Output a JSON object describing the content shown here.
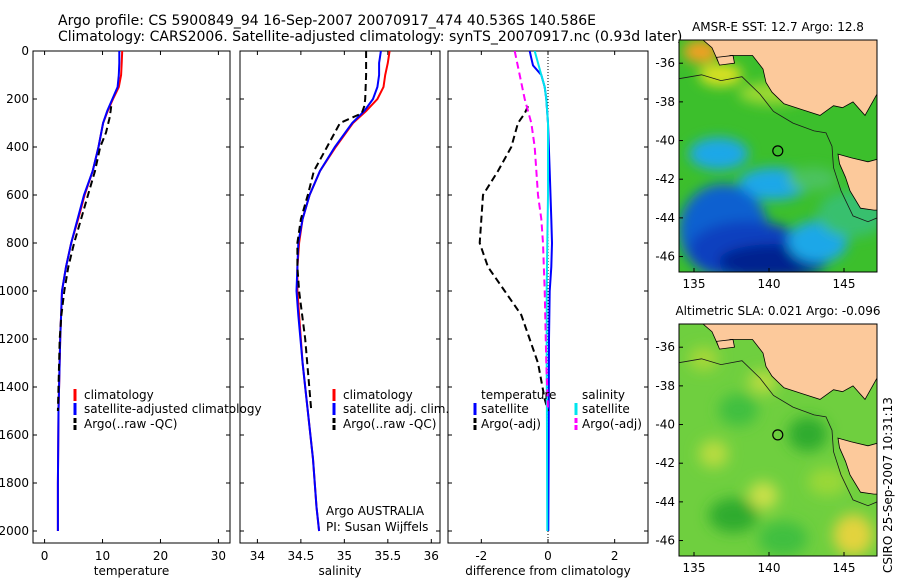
{
  "header": {
    "title_line1": "Argo profile: CS 5900849_94 16-Sep-2007 20070917_474 40.536S 140.586E",
    "title_line2": "Climatology: CARS2006. Satellite-adjusted climatology: synTS_20070917.nc (0.93d later)"
  },
  "side_stamp": "CSIRO 25-Sep-2007 10:31:13",
  "colors": {
    "climatology": "#ff0000",
    "satellite": "#0000ff",
    "argo": "#000000",
    "sal_satellite": "#00e5ee",
    "sal_argo": "#ff00ff",
    "land": "#fcc99b",
    "warm_water": "#3fbf3f",
    "cool_water": "#0a3fbf"
  },
  "chart_data": [
    {
      "type": "line",
      "panel": "temperature",
      "xlabel": "temperature",
      "ylabel": "",
      "xlim": [
        -2,
        32
      ],
      "ylim": [
        2050,
        0
      ],
      "xticks": [
        0,
        10,
        20,
        30
      ],
      "yticks": [
        0,
        200,
        400,
        600,
        800,
        1000,
        1200,
        1400,
        1600,
        1800,
        2000
      ],
      "legend_position": "lower-right",
      "series": [
        {
          "name": "climatology",
          "color": "#ff0000",
          "dash": "solid",
          "x": [
            13.4,
            13.3,
            13.2,
            12.8,
            11.8,
            10.9,
            10.1,
            9.3,
            8.3,
            6.9,
            5.8,
            4.6,
            3.7,
            3.0,
            2.7,
            2.4,
            2.3,
            2.3
          ],
          "y": [
            0,
            50,
            100,
            150,
            200,
            250,
            300,
            400,
            500,
            600,
            700,
            800,
            900,
            1000,
            1200,
            1500,
            1800,
            2000
          ]
        },
        {
          "name": "satellite-adjusted climatology",
          "color": "#0000ff",
          "dash": "solid",
          "x": [
            12.9,
            12.9,
            12.8,
            12.6,
            11.7,
            10.8,
            10.1,
            9.3,
            8.3,
            6.8,
            5.7,
            4.6,
            3.7,
            3.0,
            2.7,
            2.4,
            2.3,
            2.3
          ],
          "y": [
            0,
            50,
            100,
            150,
            200,
            250,
            300,
            400,
            500,
            600,
            700,
            800,
            900,
            1000,
            1200,
            1500,
            1800,
            2000
          ]
        },
        {
          "name": "Argo(..raw -QC)",
          "color": "#000000",
          "dash": "dash",
          "x": [
            11.5,
            11.4,
            11.2,
            10.6,
            9.6,
            8.7,
            7.5,
            6.3,
            5.1,
            4.1,
            3.4,
            2.9,
            2.6,
            2.4,
            2.3
          ],
          "y": [
            230,
            250,
            280,
            340,
            400,
            500,
            600,
            700,
            800,
            900,
            1000,
            1100,
            1200,
            1400,
            1500
          ]
        }
      ],
      "legend": [
        "climatology",
        "satellite-adjusted climatology",
        "Argo(..raw -QC)"
      ]
    },
    {
      "type": "line",
      "panel": "salinity",
      "xlabel": "salinity",
      "xlim": [
        33.8,
        36.1
      ],
      "ylim": [
        2050,
        0
      ],
      "xticks": [
        34,
        34.5,
        35,
        35.5,
        36
      ],
      "xtick_labels": [
        "34",
        "34.5",
        "35",
        "35.5",
        "36"
      ],
      "legend_position": "lower-right",
      "series": [
        {
          "name": "climatology",
          "color": "#ff0000",
          "dash": "solid",
          "x": [
            35.52,
            35.5,
            35.47,
            35.45,
            35.38,
            35.25,
            35.1,
            34.9,
            34.72,
            34.6,
            34.52,
            34.48,
            34.46,
            34.46,
            34.48,
            34.52,
            34.58,
            34.64,
            34.68,
            34.71
          ],
          "y": [
            0,
            50,
            100,
            150,
            200,
            250,
            300,
            400,
            500,
            600,
            700,
            800,
            900,
            1000,
            1100,
            1300,
            1500,
            1700,
            1900,
            2000
          ]
        },
        {
          "name": "satellite adj. clim.",
          "color": "#0000ff",
          "dash": "solid",
          "x": [
            35.42,
            35.4,
            35.4,
            35.38,
            35.33,
            35.23,
            35.09,
            34.89,
            34.72,
            34.6,
            34.52,
            34.47,
            34.46,
            34.45,
            34.47,
            34.52,
            34.58,
            34.64,
            34.68,
            34.71
          ],
          "y": [
            0,
            50,
            100,
            150,
            200,
            250,
            300,
            400,
            500,
            600,
            700,
            800,
            900,
            1000,
            1100,
            1300,
            1500,
            1700,
            1900,
            2000
          ]
        },
        {
          "name": "Argo(..raw -QC)",
          "color": "#000000",
          "dash": "dash",
          "x": [
            35.25,
            35.25,
            35.24,
            35.23,
            35.2,
            34.95,
            34.8,
            34.65,
            34.58,
            34.5,
            34.46,
            34.46,
            34.48,
            34.55,
            34.62
          ],
          "y": [
            0,
            100,
            200,
            230,
            260,
            300,
            400,
            500,
            600,
            700,
            800,
            900,
            1000,
            1200,
            1500
          ]
        }
      ],
      "legend": [
        "climatology",
        "satellite adj. clim.",
        "Argo(..raw -QC)"
      ],
      "annotations": [
        "Argo AUSTRALIA",
        "PI: Susan Wijffels"
      ]
    },
    {
      "type": "line",
      "panel": "difference",
      "xlabel": "difference from climatology",
      "xlim": [
        -3,
        3
      ],
      "ylim": [
        2050,
        0
      ],
      "xticks": [
        -2,
        0,
        2
      ],
      "legend_position": "lower-right",
      "series": [
        {
          "group": "temperature",
          "name": "satellite",
          "color": "#0000ff",
          "dash": "solid",
          "x": [
            -0.55,
            -0.5,
            -0.45,
            -0.2,
            -0.1,
            -0.05,
            0.0,
            0.05,
            0.1,
            0.12,
            0.1,
            0.05,
            0.03,
            0.02,
            0.01
          ],
          "y": [
            0,
            30,
            60,
            100,
            150,
            200,
            300,
            500,
            700,
            800,
            900,
            1000,
            1200,
            1600,
            2000
          ]
        },
        {
          "group": "temperature",
          "name": "Argo(-adj)",
          "color": "#000000",
          "dash": "dash",
          "x": [
            -0.6,
            -0.7,
            -0.9,
            -1.1,
            -1.5,
            -1.95,
            -2.05,
            -1.8,
            -1.3,
            -0.8,
            -0.3,
            -0.1,
            0.0
          ],
          "y": [
            230,
            260,
            300,
            400,
            500,
            600,
            800,
            900,
            1000,
            1100,
            1300,
            1450,
            1500
          ]
        },
        {
          "group": "salinity",
          "name": "satellite",
          "color": "#00e5ee",
          "dash": "solid",
          "x": [
            -0.4,
            -0.3,
            -0.2,
            -0.1,
            -0.05,
            0.0,
            0.0,
            -0.02,
            -0.04,
            -0.04,
            -0.03,
            -0.02
          ],
          "y": [
            0,
            50,
            100,
            150,
            200,
            300,
            600,
            800,
            1000,
            1300,
            1600,
            2000
          ]
        },
        {
          "group": "salinity",
          "name": "Argo(-adj)",
          "color": "#ff00ff",
          "dash": "dash",
          "x": [
            -1.0,
            -0.85,
            -0.7,
            -0.5,
            -0.4,
            -0.3,
            -0.2,
            -0.15,
            -0.1,
            -0.05,
            0.0
          ],
          "y": [
            0,
            100,
            200,
            300,
            400,
            600,
            700,
            800,
            1000,
            1300,
            1500
          ]
        }
      ],
      "legend_groups": {
        "temperature": "temperature",
        "salinity": "salinity"
      },
      "legend": {
        "temperature": [
          "satellite",
          "Argo(-adj)"
        ],
        "salinity": [
          "satellite",
          "Argo(-adj)"
        ]
      }
    },
    {
      "type": "heatmap",
      "panel": "sst_map",
      "title": "AMSR-E SST: 12.7  Argo: 12.8",
      "xlim": [
        134,
        147.2
      ],
      "ylim": [
        -46.8,
        -34.8
      ],
      "xticks": [
        135,
        140,
        145
      ],
      "yticks": [
        -36,
        -38,
        -40,
        -42,
        -44,
        -46
      ],
      "argo_position": {
        "lon": 140.586,
        "lat": -40.536
      }
    },
    {
      "type": "heatmap",
      "panel": "sla_map",
      "title": "Altimetric SLA: 0.021  Argo: -0.096",
      "xlim": [
        134,
        147.2
      ],
      "ylim": [
        -46.8,
        -34.8
      ],
      "xticks": [
        135,
        140,
        145
      ],
      "yticks": [
        -36,
        -38,
        -40,
        -42,
        -44,
        -46
      ],
      "argo_position": {
        "lon": 140.586,
        "lat": -40.536
      }
    }
  ]
}
